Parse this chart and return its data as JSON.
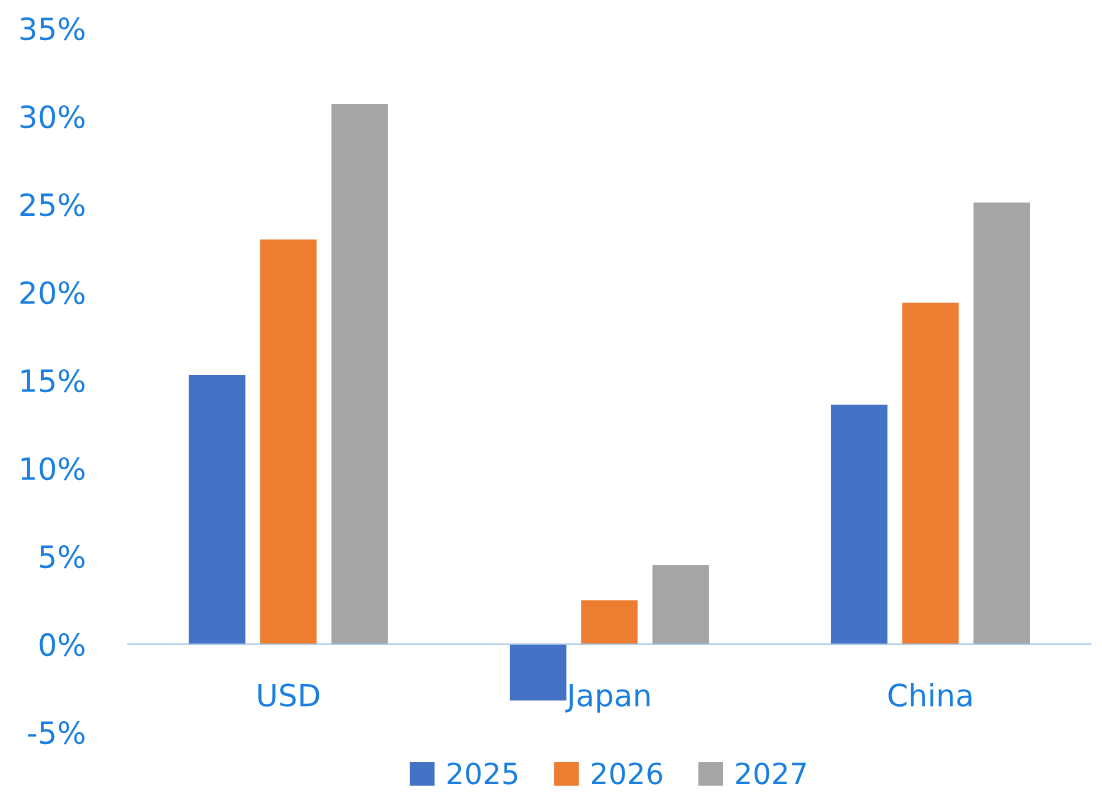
{
  "chart_data": {
    "type": "bar",
    "categories": [
      "USD",
      "Japan",
      "China"
    ],
    "series": [
      {
        "name": "2025",
        "color": "#4472c4",
        "values": [
          15.3,
          -3.2,
          13.6
        ]
      },
      {
        "name": "2026",
        "color": "#ed7d31",
        "values": [
          23.0,
          2.5,
          19.4
        ]
      },
      {
        "name": "2027",
        "color": "#a5a5a5",
        "values": [
          30.7,
          4.5,
          25.1
        ]
      }
    ],
    "ylim": [
      -5,
      35
    ],
    "yticks": [
      {
        "value": -5,
        "label": "-5%"
      },
      {
        "value": 0,
        "label": "0%"
      },
      {
        "value": 5,
        "label": "5%"
      },
      {
        "value": 10,
        "label": "10%"
      },
      {
        "value": 15,
        "label": "15%"
      },
      {
        "value": 20,
        "label": "20%"
      },
      {
        "value": 25,
        "label": "25%"
      },
      {
        "value": 30,
        "label": "30%"
      },
      {
        "value": 35,
        "label": "35%"
      }
    ],
    "grid": false,
    "legend": "bottom"
  }
}
